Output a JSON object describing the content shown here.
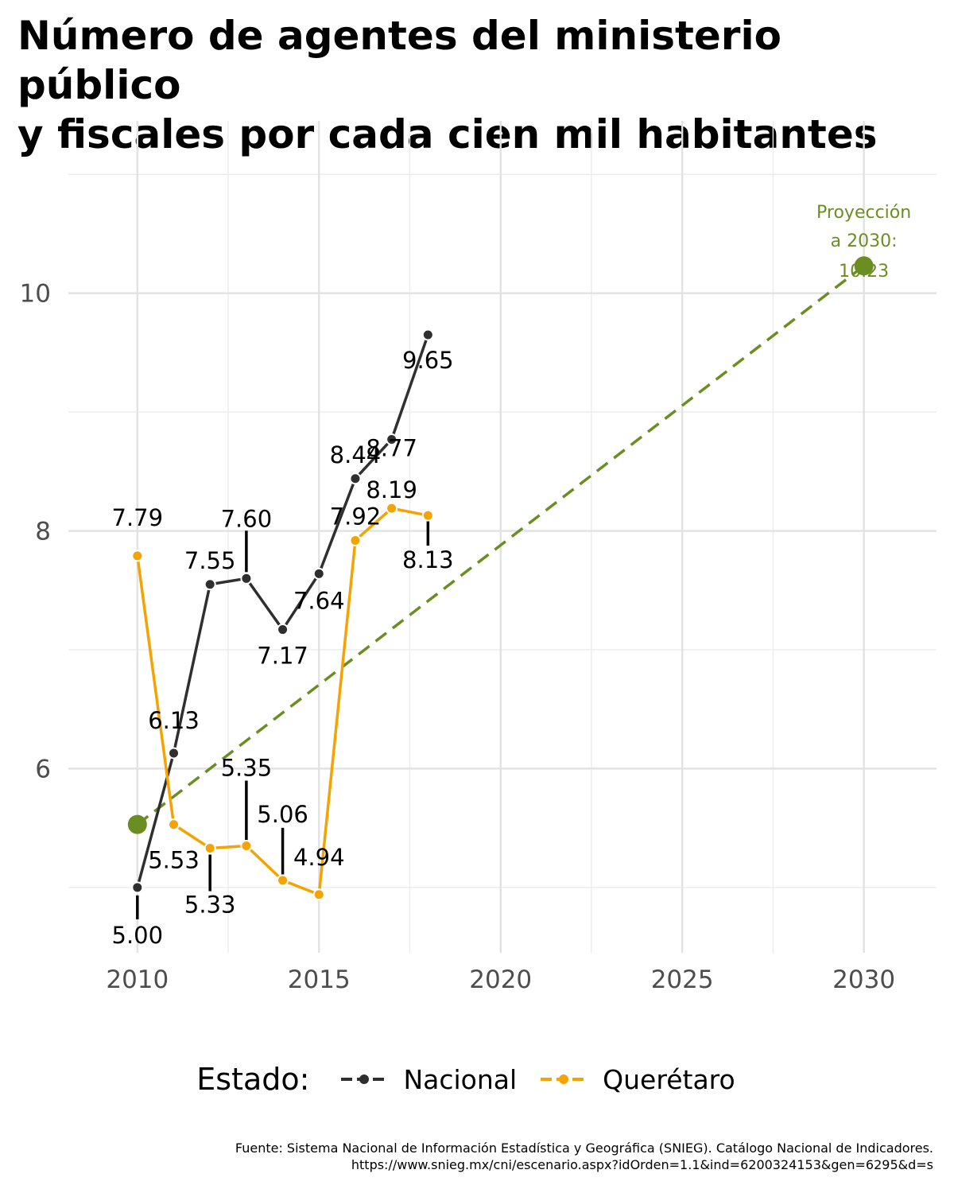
{
  "title_lines": [
    "Número de agentes del ministerio público",
    "y fiscales por cada cien mil habitantes"
  ],
  "legend": {
    "title": "Estado:",
    "items": [
      {
        "label": "Nacional",
        "color": "#2f2f2f"
      },
      {
        "label": "Querétaro",
        "color": "#f5a300"
      }
    ]
  },
  "source_lines": [
    "Fuente: Sistema Nacional de Información Estadística y Geográfica (SNIEG). Catálogo Nacional de Indicadores.",
    "https://www.snieg.mx/cni/escenario.aspx?idOrden=1.1&ind=6200324153&gen=6295&d=s"
  ],
  "projection": {
    "label_lines": [
      "Proyección",
      "a 2030:",
      "10.23"
    ],
    "color": "#6b8e23"
  },
  "chart_data": {
    "type": "line",
    "x_ticks": [
      2010,
      2015,
      2020,
      2025,
      2030
    ],
    "y_ticks": [
      6,
      8,
      10
    ],
    "xlim": [
      2008.1,
      2032.0
    ],
    "ylim": [
      4.45,
      11.45
    ],
    "grid": true,
    "legend_position": "bottom",
    "series": [
      {
        "name": "Nacional",
        "color": "#2f2f2f",
        "x": [
          2010,
          2011,
          2012,
          2013,
          2014,
          2015,
          2016,
          2017,
          2018
        ],
        "values": [
          5.0,
          6.13,
          7.55,
          7.6,
          7.17,
          7.64,
          8.44,
          8.77,
          9.65
        ],
        "labels": [
          "5.00",
          "6.13",
          "7.55",
          "7.60",
          "7.17",
          "7.64",
          "8.44",
          "8.77",
          "9.65"
        ]
      },
      {
        "name": "Querétaro",
        "color": "#f5a300",
        "x": [
          2010,
          2011,
          2012,
          2013,
          2014,
          2015,
          2016,
          2017,
          2018
        ],
        "values": [
          7.79,
          5.53,
          5.33,
          5.35,
          5.06,
          4.94,
          7.92,
          8.19,
          8.13
        ],
        "labels": [
          "7.79",
          "5.53",
          "5.33",
          "5.35",
          "5.06",
          "4.94",
          "7.92",
          "8.19",
          "8.13"
        ]
      }
    ],
    "projection": {
      "x": [
        2010,
        2030
      ],
      "values": [
        5.53,
        10.23
      ],
      "color": "#6b8e23",
      "style": "dashed"
    }
  }
}
